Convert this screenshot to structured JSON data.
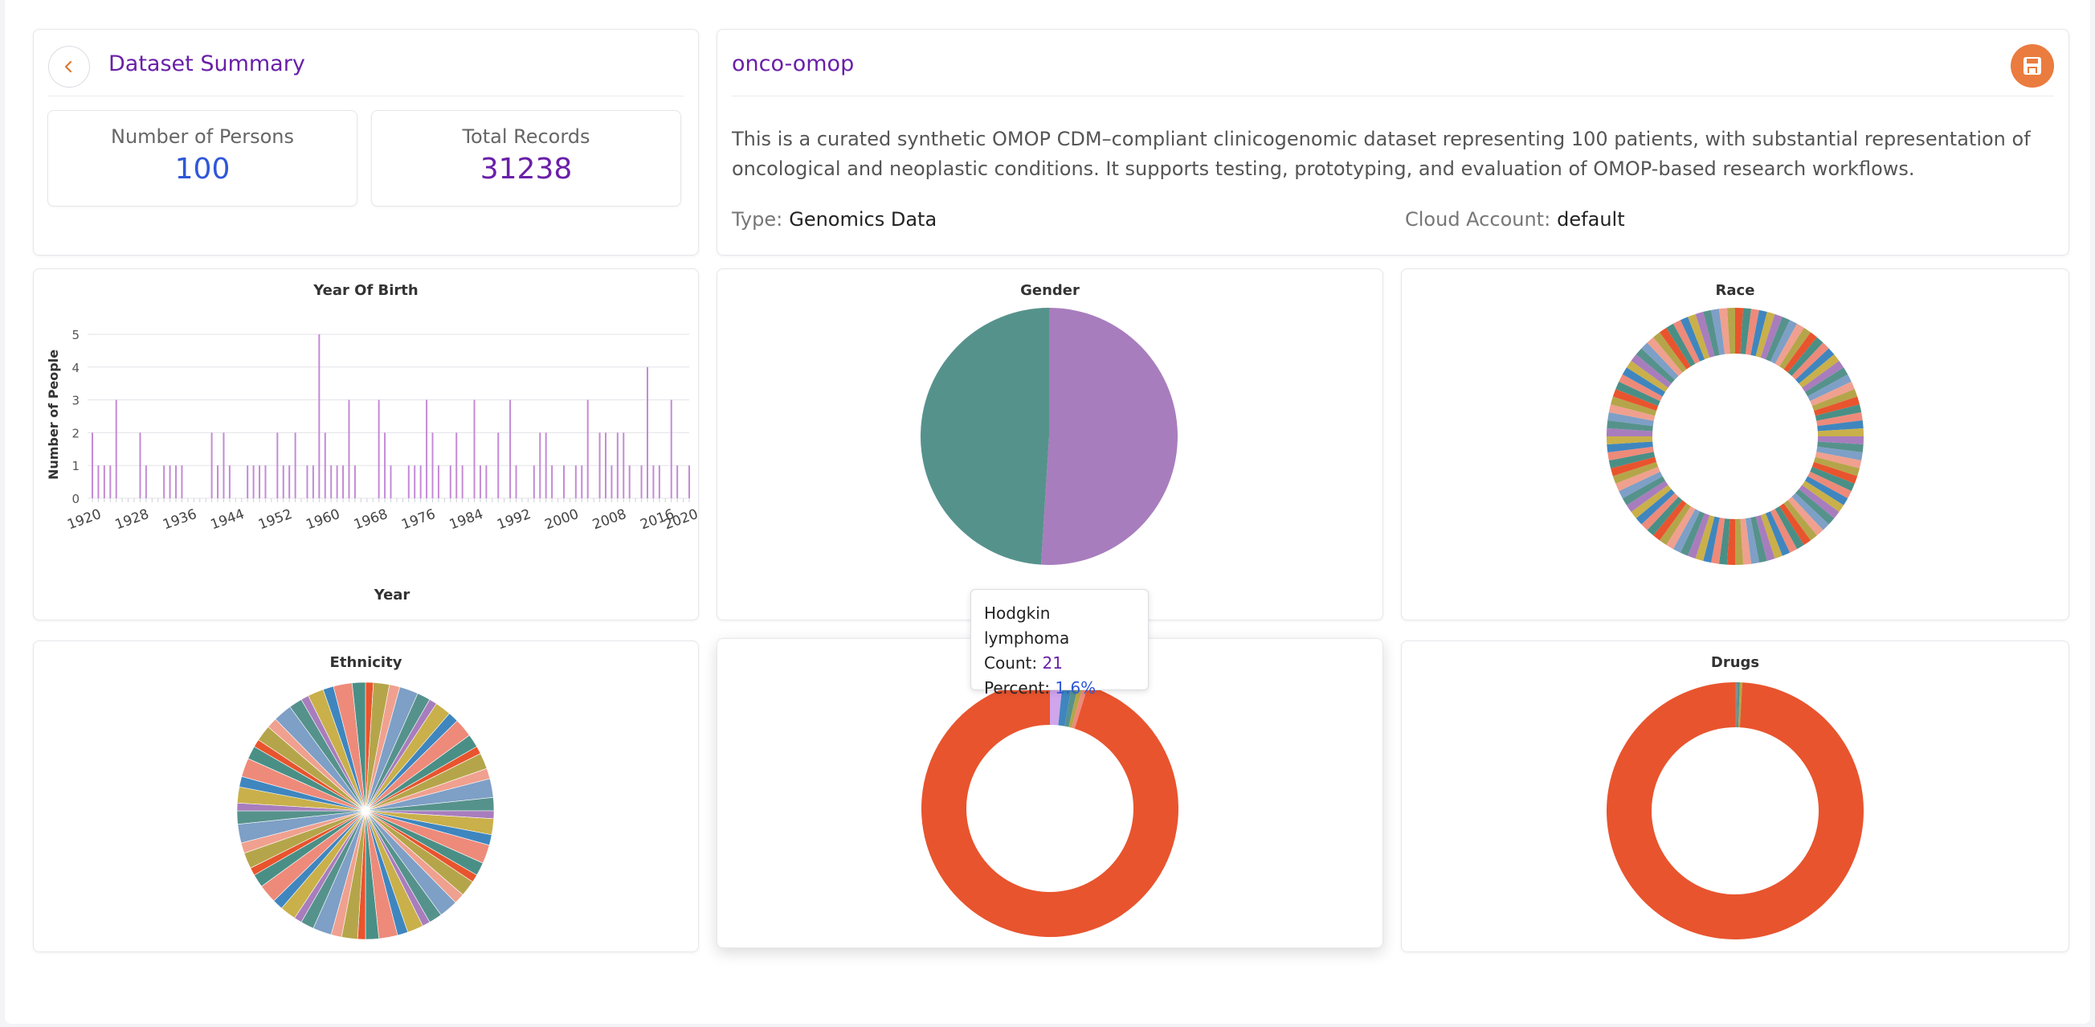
{
  "summary": {
    "title": "Dataset Summary",
    "persons_label": "Number of Persons",
    "persons_value": "100",
    "records_label": "Total Records",
    "records_value": "31238"
  },
  "dataset": {
    "name": "onco-omop",
    "description": "This is a curated synthetic OMOP CDM–compliant clinicogenomic dataset representing 100 patients, with substantial representation of oncological and neoplastic conditions. It supports testing, prototyping, and evaluation of OMOP-based research workflows.",
    "type_label": "Type:",
    "type_value": "Genomics Data",
    "cloud_label": "Cloud Account:",
    "cloud_value": "default"
  },
  "icons": {
    "back": "chevron-left-icon",
    "save": "floppy-disk-icon"
  },
  "colors": {
    "accent": "#6a1fa8",
    "persons_value": "#2f57d8",
    "save_button": "#ea7c3f",
    "bar": "#c48ad6"
  },
  "tooltip": {
    "title": "Hodgkin lymphoma",
    "count_label": "Count:",
    "count_value": "21",
    "percent_label": "Percent:",
    "percent_value": "1.6%"
  },
  "chart_data": [
    {
      "type": "bar",
      "title": "Year Of Birth",
      "xlabel": "Year",
      "ylabel": "Number of People",
      "x_ticks": [
        "1920",
        "1928",
        "1936",
        "1944",
        "1952",
        "1960",
        "1968",
        "1976",
        "1984",
        "1992",
        "2000",
        "2008",
        "2016",
        "2020"
      ],
      "y_ticks": [
        "0",
        "1",
        "2",
        "3",
        "4",
        "5"
      ],
      "ylim": [
        0,
        5
      ],
      "xlim": [
        1920,
        2020
      ],
      "grid": true,
      "x": [
        1920,
        1921,
        1922,
        1923,
        1924,
        1928,
        1929,
        1932,
        1933,
        1934,
        1935,
        1940,
        1941,
        1942,
        1943,
        1946,
        1947,
        1948,
        1949,
        1951,
        1952,
        1953,
        1954,
        1956,
        1957,
        1958,
        1959,
        1960,
        1961,
        1962,
        1963,
        1964,
        1968,
        1969,
        1970,
        1973,
        1974,
        1975,
        1976,
        1977,
        1978,
        1980,
        1981,
        1982,
        1984,
        1985,
        1986,
        1988,
        1990,
        1991,
        1994,
        1995,
        1996,
        1997,
        1999,
        2001,
        2002,
        2003,
        2005,
        2006,
        2007,
        2008,
        2009,
        2010,
        2012,
        2013,
        2014,
        2015,
        2017,
        2018,
        2020
      ],
      "values": [
        2,
        1,
        1,
        1,
        3,
        2,
        1,
        1,
        1,
        1,
        1,
        2,
        1,
        2,
        1,
        1,
        1,
        1,
        1,
        2,
        1,
        1,
        2,
        1,
        1,
        5,
        2,
        1,
        1,
        1,
        3,
        1,
        3,
        2,
        1,
        1,
        1,
        1,
        3,
        2,
        1,
        1,
        2,
        1,
        3,
        1,
        1,
        2,
        3,
        1,
        1,
        2,
        2,
        1,
        1,
        1,
        1,
        3,
        2,
        2,
        1,
        2,
        2,
        1,
        1,
        4,
        1,
        1,
        3,
        1,
        1
      ]
    },
    {
      "type": "pie",
      "title": "Gender",
      "slices": [
        {
          "value": 51,
          "color": "#a87dbd"
        },
        {
          "value": 49,
          "color": "#56928c"
        }
      ]
    },
    {
      "type": "pie",
      "title": "Race",
      "donut": true,
      "slice_count": 100
    },
    {
      "type": "pie",
      "title": "Ethnicity",
      "slice_count": 60
    },
    {
      "type": "pie",
      "title": "",
      "donut": true,
      "slices": [
        {
          "label": "Hodgkin lymphoma",
          "count": 21,
          "percent": 1.6,
          "color": "#d0a5ec"
        },
        {
          "percent": 1.2,
          "color": "#3f86bf"
        },
        {
          "percent": 0.8,
          "color": "#56928c"
        },
        {
          "percent": 0.6,
          "color": "#b5a54a"
        },
        {
          "percent": 0.6,
          "color": "#ee8a7a"
        },
        {
          "percent": 95.2,
          "color": "#e8542e"
        }
      ]
    },
    {
      "type": "pie",
      "title": "Drugs",
      "donut": true,
      "slices": [
        {
          "percent": 0.3,
          "color": "#888888"
        },
        {
          "percent": 0.3,
          "color": "#56928c"
        },
        {
          "percent": 0.3,
          "color": "#b5a54a"
        },
        {
          "percent": 99.1,
          "color": "#e8542e"
        }
      ]
    }
  ]
}
